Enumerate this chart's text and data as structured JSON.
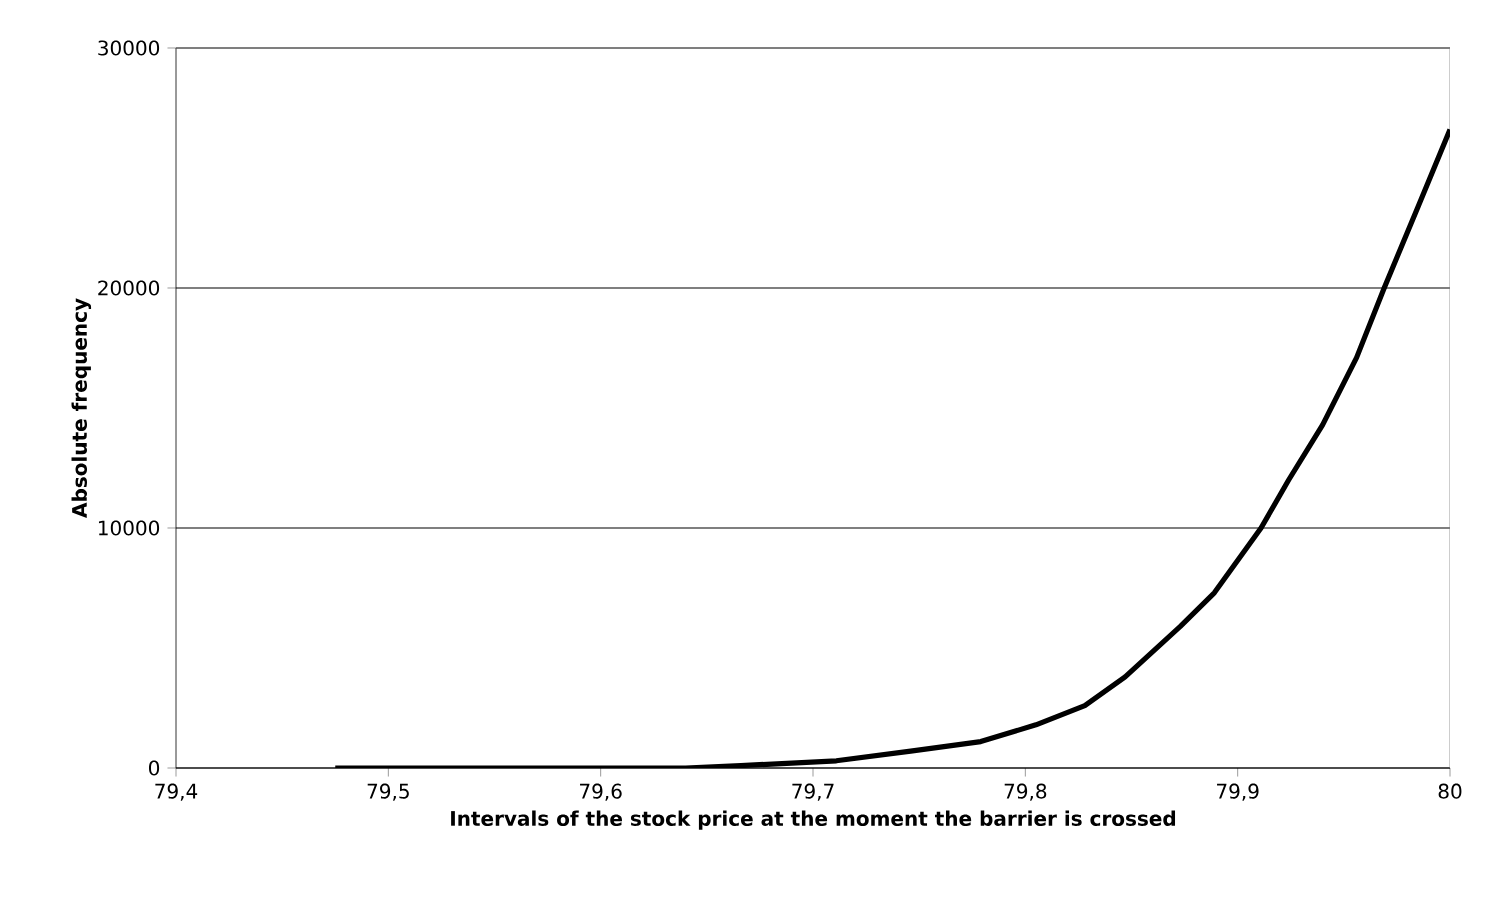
{
  "chart_data": {
    "type": "line",
    "xlabel": "Intervals of the stock price at the moment the barrier is crossed",
    "ylabel": "Absolute frequency",
    "x": [
      79.475,
      79.55,
      79.6,
      79.64,
      79.666,
      79.711,
      79.746,
      79.779,
      79.805,
      79.828,
      79.847,
      79.873,
      79.889,
      79.911,
      79.924,
      79.94,
      79.956,
      79.969,
      79.985,
      80
    ],
    "values": [
      0,
      0,
      0,
      0,
      100,
      300,
      700,
      1100,
      1800,
      2600,
      3800,
      5900,
      7300,
      10000,
      12000,
      14300,
      17100,
      20000,
      23400,
      26600
    ],
    "color": "#000000",
    "marker": "none",
    "line_style": "solid",
    "grid": "y",
    "xlim": [
      79.4,
      80
    ],
    "xticks": [
      {
        "value": 79.4,
        "label": "79,4"
      },
      {
        "value": 79.5,
        "label": "79,5"
      },
      {
        "value": 79.6,
        "label": "79,6"
      },
      {
        "value": 79.7,
        "label": "79,7"
      },
      {
        "value": 79.8,
        "label": "79,8"
      },
      {
        "value": 79.9,
        "label": "79,9"
      },
      {
        "value": 80,
        "label": "80"
      }
    ],
    "ylim": [
      0,
      30000
    ],
    "yticks": [
      0,
      10000,
      20000,
      30000
    ]
  }
}
